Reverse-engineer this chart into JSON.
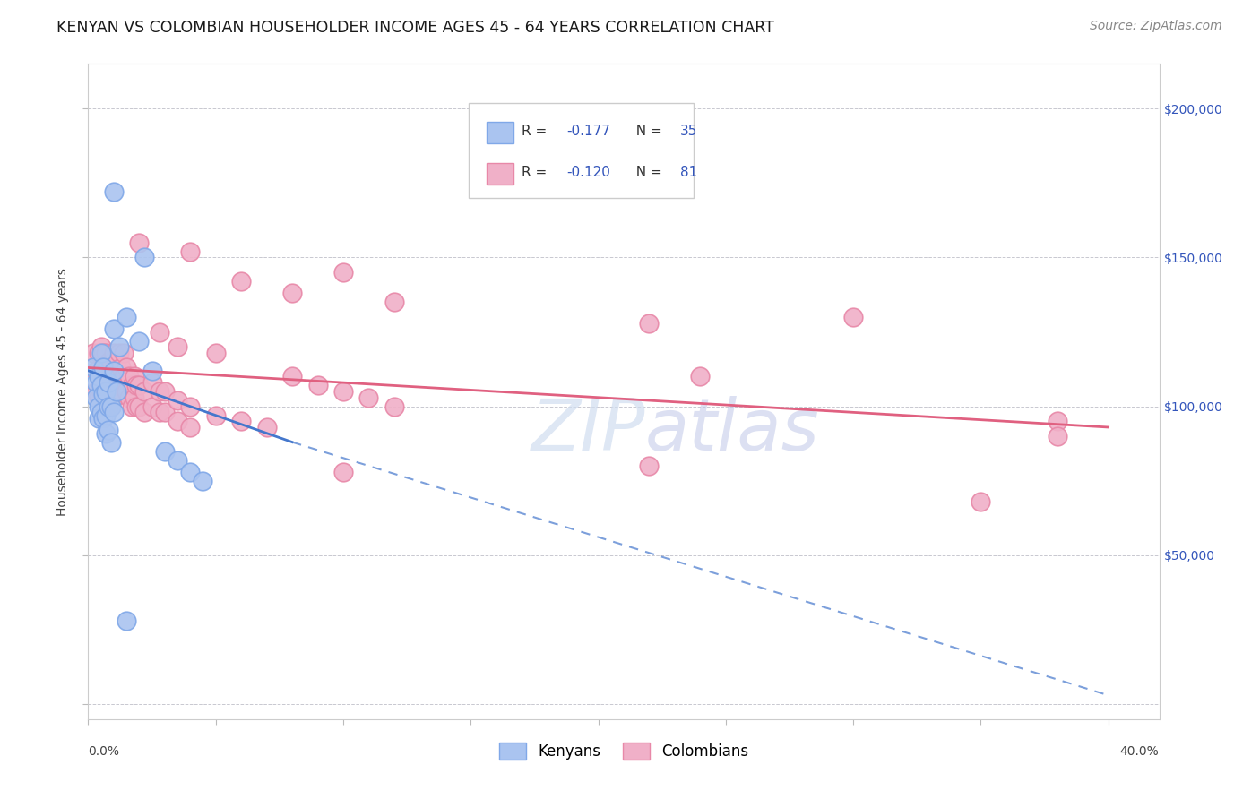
{
  "title": "KENYAN VS COLOMBIAN HOUSEHOLDER INCOME AGES 45 - 64 YEARS CORRELATION CHART",
  "source": "Source: ZipAtlas.com",
  "ylabel": "Householder Income Ages 45 - 64 years",
  "xlim": [
    0.0,
    0.42
  ],
  "ylim": [
    -5000,
    215000
  ],
  "yticks": [
    0,
    50000,
    100000,
    150000,
    200000
  ],
  "ytick_labels": [
    "",
    "$50,000",
    "$100,000",
    "$150,000",
    "$200,000"
  ],
  "bg_color": "#ffffff",
  "grid_color": "#c8c8d0",
  "kenya_color": "#aac4f0",
  "kenya_edge_color": "#80a8e8",
  "colombia_color": "#f0b0c8",
  "colombia_edge_color": "#e888a8",
  "kenya_line_color": "#4477cc",
  "colombia_line_color": "#e06080",
  "watermark_text": "ZIPatlas",
  "kenya_points": [
    [
      0.002,
      113000
    ],
    [
      0.003,
      108000
    ],
    [
      0.003,
      103000
    ],
    [
      0.004,
      110000
    ],
    [
      0.004,
      100000
    ],
    [
      0.004,
      96000
    ],
    [
      0.005,
      118000
    ],
    [
      0.005,
      107000
    ],
    [
      0.005,
      98000
    ],
    [
      0.006,
      113000
    ],
    [
      0.006,
      104000
    ],
    [
      0.006,
      96000
    ],
    [
      0.007,
      105000
    ],
    [
      0.007,
      97000
    ],
    [
      0.007,
      91000
    ],
    [
      0.008,
      108000
    ],
    [
      0.008,
      100000
    ],
    [
      0.008,
      92000
    ],
    [
      0.009,
      100000
    ],
    [
      0.009,
      88000
    ],
    [
      0.01,
      126000
    ],
    [
      0.01,
      112000
    ],
    [
      0.01,
      98000
    ],
    [
      0.011,
      105000
    ],
    [
      0.012,
      120000
    ],
    [
      0.015,
      130000
    ],
    [
      0.02,
      122000
    ],
    [
      0.025,
      112000
    ],
    [
      0.03,
      85000
    ],
    [
      0.035,
      82000
    ],
    [
      0.04,
      78000
    ],
    [
      0.045,
      75000
    ],
    [
      0.01,
      172000
    ],
    [
      0.022,
      150000
    ],
    [
      0.015,
      28000
    ]
  ],
  "colombia_points": [
    [
      0.002,
      118000
    ],
    [
      0.003,
      112000
    ],
    [
      0.003,
      105000
    ],
    [
      0.004,
      118000
    ],
    [
      0.004,
      110000
    ],
    [
      0.004,
      103000
    ],
    [
      0.005,
      120000
    ],
    [
      0.005,
      112000
    ],
    [
      0.005,
      105000
    ],
    [
      0.006,
      118000
    ],
    [
      0.006,
      110000
    ],
    [
      0.006,
      103000
    ],
    [
      0.007,
      118000
    ],
    [
      0.007,
      110000
    ],
    [
      0.007,
      103000
    ],
    [
      0.008,
      115000
    ],
    [
      0.008,
      107000
    ],
    [
      0.008,
      100000
    ],
    [
      0.009,
      115000
    ],
    [
      0.009,
      107000
    ],
    [
      0.009,
      100000
    ],
    [
      0.01,
      118000
    ],
    [
      0.01,
      110000
    ],
    [
      0.01,
      103000
    ],
    [
      0.011,
      115000
    ],
    [
      0.011,
      107000
    ],
    [
      0.012,
      118000
    ],
    [
      0.012,
      110000
    ],
    [
      0.013,
      113000
    ],
    [
      0.013,
      105000
    ],
    [
      0.014,
      118000
    ],
    [
      0.014,
      110000
    ],
    [
      0.015,
      113000
    ],
    [
      0.015,
      105000
    ],
    [
      0.016,
      110000
    ],
    [
      0.016,
      103000
    ],
    [
      0.017,
      107000
    ],
    [
      0.017,
      100000
    ],
    [
      0.018,
      110000
    ],
    [
      0.018,
      103000
    ],
    [
      0.019,
      107000
    ],
    [
      0.019,
      100000
    ],
    [
      0.02,
      107000
    ],
    [
      0.02,
      100000
    ],
    [
      0.022,
      105000
    ],
    [
      0.022,
      98000
    ],
    [
      0.025,
      108000
    ],
    [
      0.025,
      100000
    ],
    [
      0.028,
      105000
    ],
    [
      0.028,
      98000
    ],
    [
      0.03,
      105000
    ],
    [
      0.03,
      98000
    ],
    [
      0.035,
      102000
    ],
    [
      0.035,
      95000
    ],
    [
      0.04,
      100000
    ],
    [
      0.04,
      93000
    ],
    [
      0.05,
      97000
    ],
    [
      0.06,
      95000
    ],
    [
      0.07,
      93000
    ],
    [
      0.08,
      110000
    ],
    [
      0.09,
      107000
    ],
    [
      0.1,
      105000
    ],
    [
      0.11,
      103000
    ],
    [
      0.12,
      100000
    ],
    [
      0.02,
      155000
    ],
    [
      0.04,
      152000
    ],
    [
      0.06,
      142000
    ],
    [
      0.08,
      138000
    ],
    [
      0.1,
      145000
    ],
    [
      0.12,
      135000
    ],
    [
      0.028,
      125000
    ],
    [
      0.035,
      120000
    ],
    [
      0.05,
      118000
    ],
    [
      0.22,
      128000
    ],
    [
      0.24,
      110000
    ],
    [
      0.3,
      130000
    ],
    [
      0.35,
      68000
    ],
    [
      0.22,
      80000
    ],
    [
      0.1,
      78000
    ],
    [
      0.38,
      95000
    ],
    [
      0.38,
      90000
    ]
  ],
  "title_fontsize": 12.5,
  "source_fontsize": 10,
  "axis_label_fontsize": 10,
  "tick_fontsize": 10,
  "legend_fontsize": 11,
  "annot_color": "#3355bb"
}
